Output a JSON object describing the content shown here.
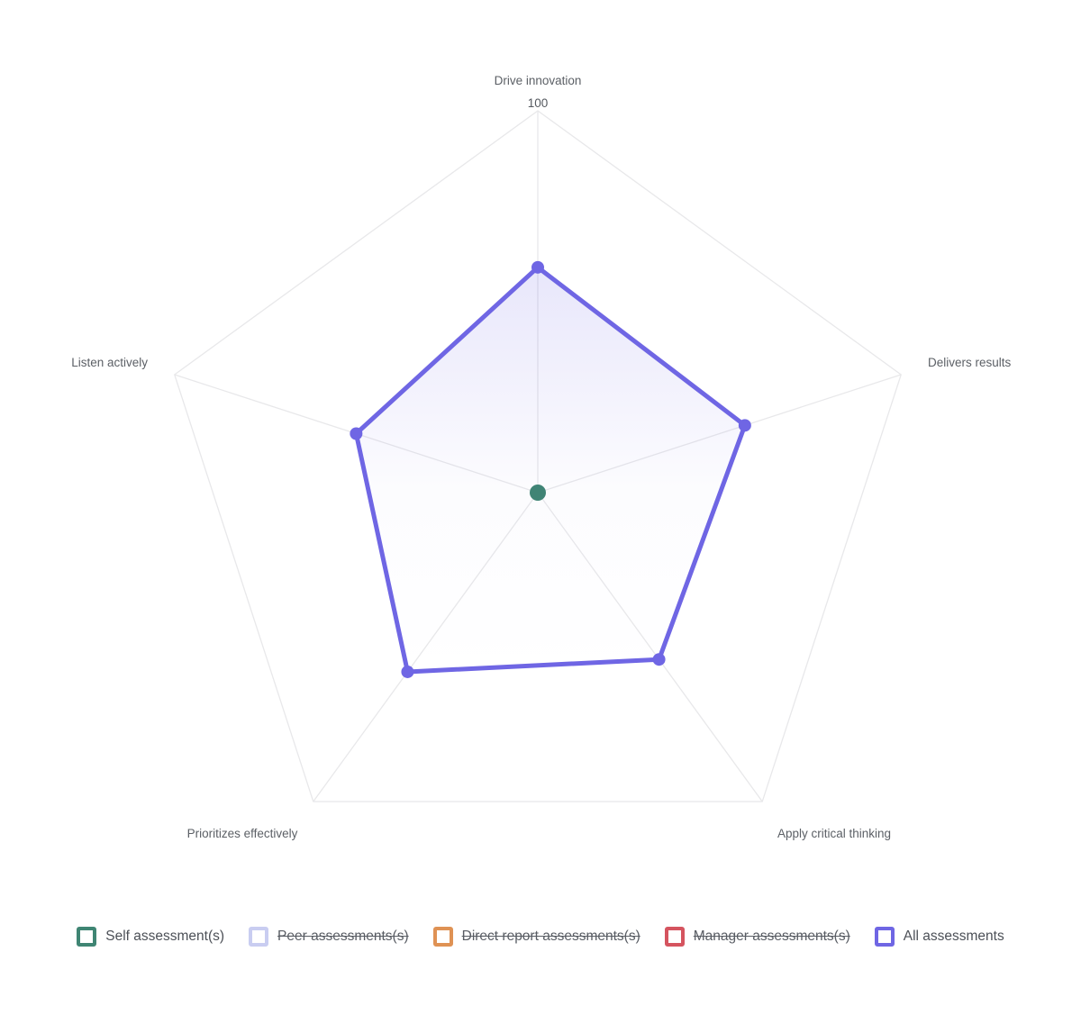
{
  "chart_data": {
    "type": "radar",
    "title": "",
    "categories": [
      "Drive innovation",
      "Delivers results",
      "Apply critical thinking",
      "Prioritizes effectively",
      "Listen actively"
    ],
    "axis_range": [
      0,
      100
    ],
    "axis_tick_label": "100",
    "grid": "outer-pentagon-ring-with-spokes",
    "legend_position": "bottom",
    "series": [
      {
        "name": "Self assessment(s)",
        "color": "#3f8573",
        "visible": true,
        "values": [
          0,
          0,
          0,
          0,
          0
        ]
      },
      {
        "name": "Peer assessments(s)",
        "color": "#c9cdf1",
        "visible": false,
        "values": null
      },
      {
        "name": "Direct report assessments(s)",
        "color": "#df9254",
        "visible": false,
        "values": null
      },
      {
        "name": "Manager assessments(s)",
        "color": "#d5545f",
        "visible": false,
        "values": null
      },
      {
        "name": "All assessments",
        "color": "#6f66e4",
        "visible": true,
        "values": [
          59,
          57,
          54,
          58,
          50
        ]
      }
    ]
  },
  "colors": {
    "background": "#ffffff",
    "grid_line": "#e8e8ea",
    "axis_label": "#5c6066",
    "legend_label": "#4c5057"
  }
}
